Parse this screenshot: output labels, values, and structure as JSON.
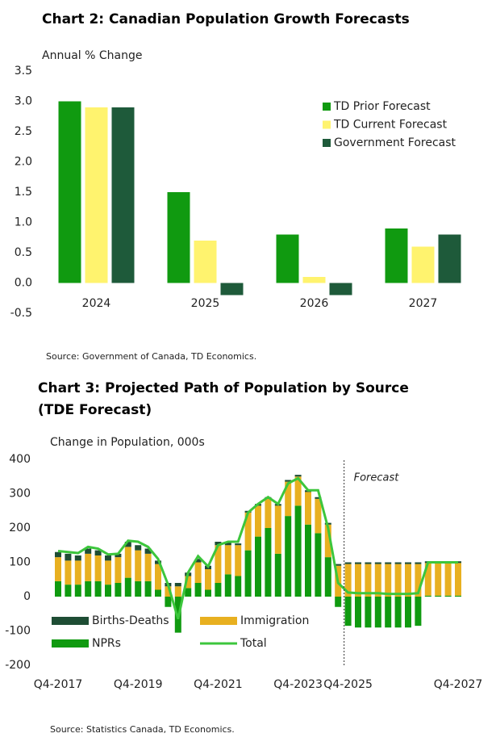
{
  "chart_data": [
    {
      "type": "bar",
      "title": "Chart 2: Canadian Population Growth Forecasts",
      "y_label": "Annual % Change",
      "categories": [
        "2024",
        "2025",
        "2026",
        "2027"
      ],
      "series": [
        {
          "name": "TD Prior Forecast",
          "color": "#109a10",
          "values": [
            3.0,
            1.5,
            0.8,
            0.9
          ]
        },
        {
          "name": "TD Current Forecast",
          "color": "#fff36e",
          "values": [
            2.9,
            0.7,
            0.1,
            0.6
          ]
        },
        {
          "name": "Government Forecast",
          "color": "#1e5a3a",
          "values": [
            2.9,
            -0.2,
            -0.2,
            0.8
          ]
        }
      ],
      "ylim": [
        -0.5,
        3.5
      ],
      "yticks": [
        -0.5,
        {
          "value": 0,
          "label": "0.0"
        },
        0.5,
        {
          "value": 1,
          "label": "1.0"
        },
        1.5,
        {
          "value": 2,
          "label": "2.0"
        },
        2.5,
        {
          "value": 3,
          "label": "3.0"
        },
        3.5
      ],
      "legend": "upper right",
      "source": "Source: Government of Canada, TD Economics."
    },
    {
      "type": "stacked_bar_line",
      "title": "Chart 3: Projected Path of Population by Source (TDE Forecast)",
      "y_label": "Change in Population, 000s",
      "categories": [
        "Q4-2017",
        null,
        null,
        null,
        null,
        null,
        null,
        null,
        "Q4-2019",
        null,
        null,
        null,
        null,
        null,
        null,
        null,
        "Q4-2021",
        null,
        null,
        null,
        null,
        null,
        null,
        null,
        "Q4-2023",
        null,
        null,
        null,
        null,
        "Q4-2025",
        null,
        null,
        null,
        null,
        null,
        null,
        null,
        null,
        null,
        null,
        "Q4-2027"
      ],
      "series": [
        {
          "name": "Births-Deaths",
          "type": "bar",
          "color": "#1e4d34",
          "values": [
            15,
            20,
            15,
            15,
            15,
            15,
            10,
            15,
            15,
            15,
            10,
            10,
            10,
            10,
            10,
            10,
            10,
            10,
            5,
            5,
            5,
            5,
            5,
            5,
            5,
            5,
            5,
            5,
            5,
            5,
            5,
            5,
            5,
            5,
            5,
            5,
            5,
            5,
            5,
            5,
            5
          ]
        },
        {
          "name": "Immigration",
          "type": "bar",
          "color": "#e8b020",
          "values": [
            70,
            70,
            70,
            80,
            75,
            70,
            75,
            90,
            90,
            80,
            75,
            30,
            30,
            35,
            60,
            60,
            110,
            85,
            90,
            110,
            90,
            85,
            140,
            100,
            85,
            95,
            100,
            95,
            90,
            95,
            95,
            95,
            95,
            95,
            95,
            95,
            95,
            95,
            95,
            95,
            95
          ]
        },
        {
          "name": "NPRs",
          "type": "bar",
          "color": "#109a10",
          "values": [
            45,
            35,
            35,
            45,
            45,
            35,
            40,
            55,
            45,
            45,
            20,
            -30,
            -105,
            25,
            40,
            20,
            40,
            65,
            60,
            135,
            175,
            200,
            125,
            235,
            265,
            210,
            185,
            115,
            -30,
            -85,
            -90,
            -90,
            -90,
            -90,
            -90,
            -90,
            -85,
            3,
            3,
            3,
            3
          ]
        },
        {
          "name": "Total",
          "type": "line",
          "color": "#3cc63c",
          "values": [
            133,
            130,
            127,
            145,
            140,
            123,
            125,
            163,
            160,
            145,
            110,
            35,
            -65,
            70,
            118,
            88,
            150,
            160,
            160,
            245,
            270,
            290,
            270,
            330,
            345,
            310,
            310,
            200,
            40,
            12,
            10,
            10,
            10,
            8,
            8,
            8,
            10,
            100,
            100,
            100,
            100
          ]
        }
      ],
      "ylim": [
        -200,
        400
      ],
      "yticks": [
        -200,
        -100,
        0,
        100,
        200,
        300,
        400
      ],
      "annotation": "Forecast",
      "source": "Source: Statistics Canada, TD Economics."
    }
  ]
}
